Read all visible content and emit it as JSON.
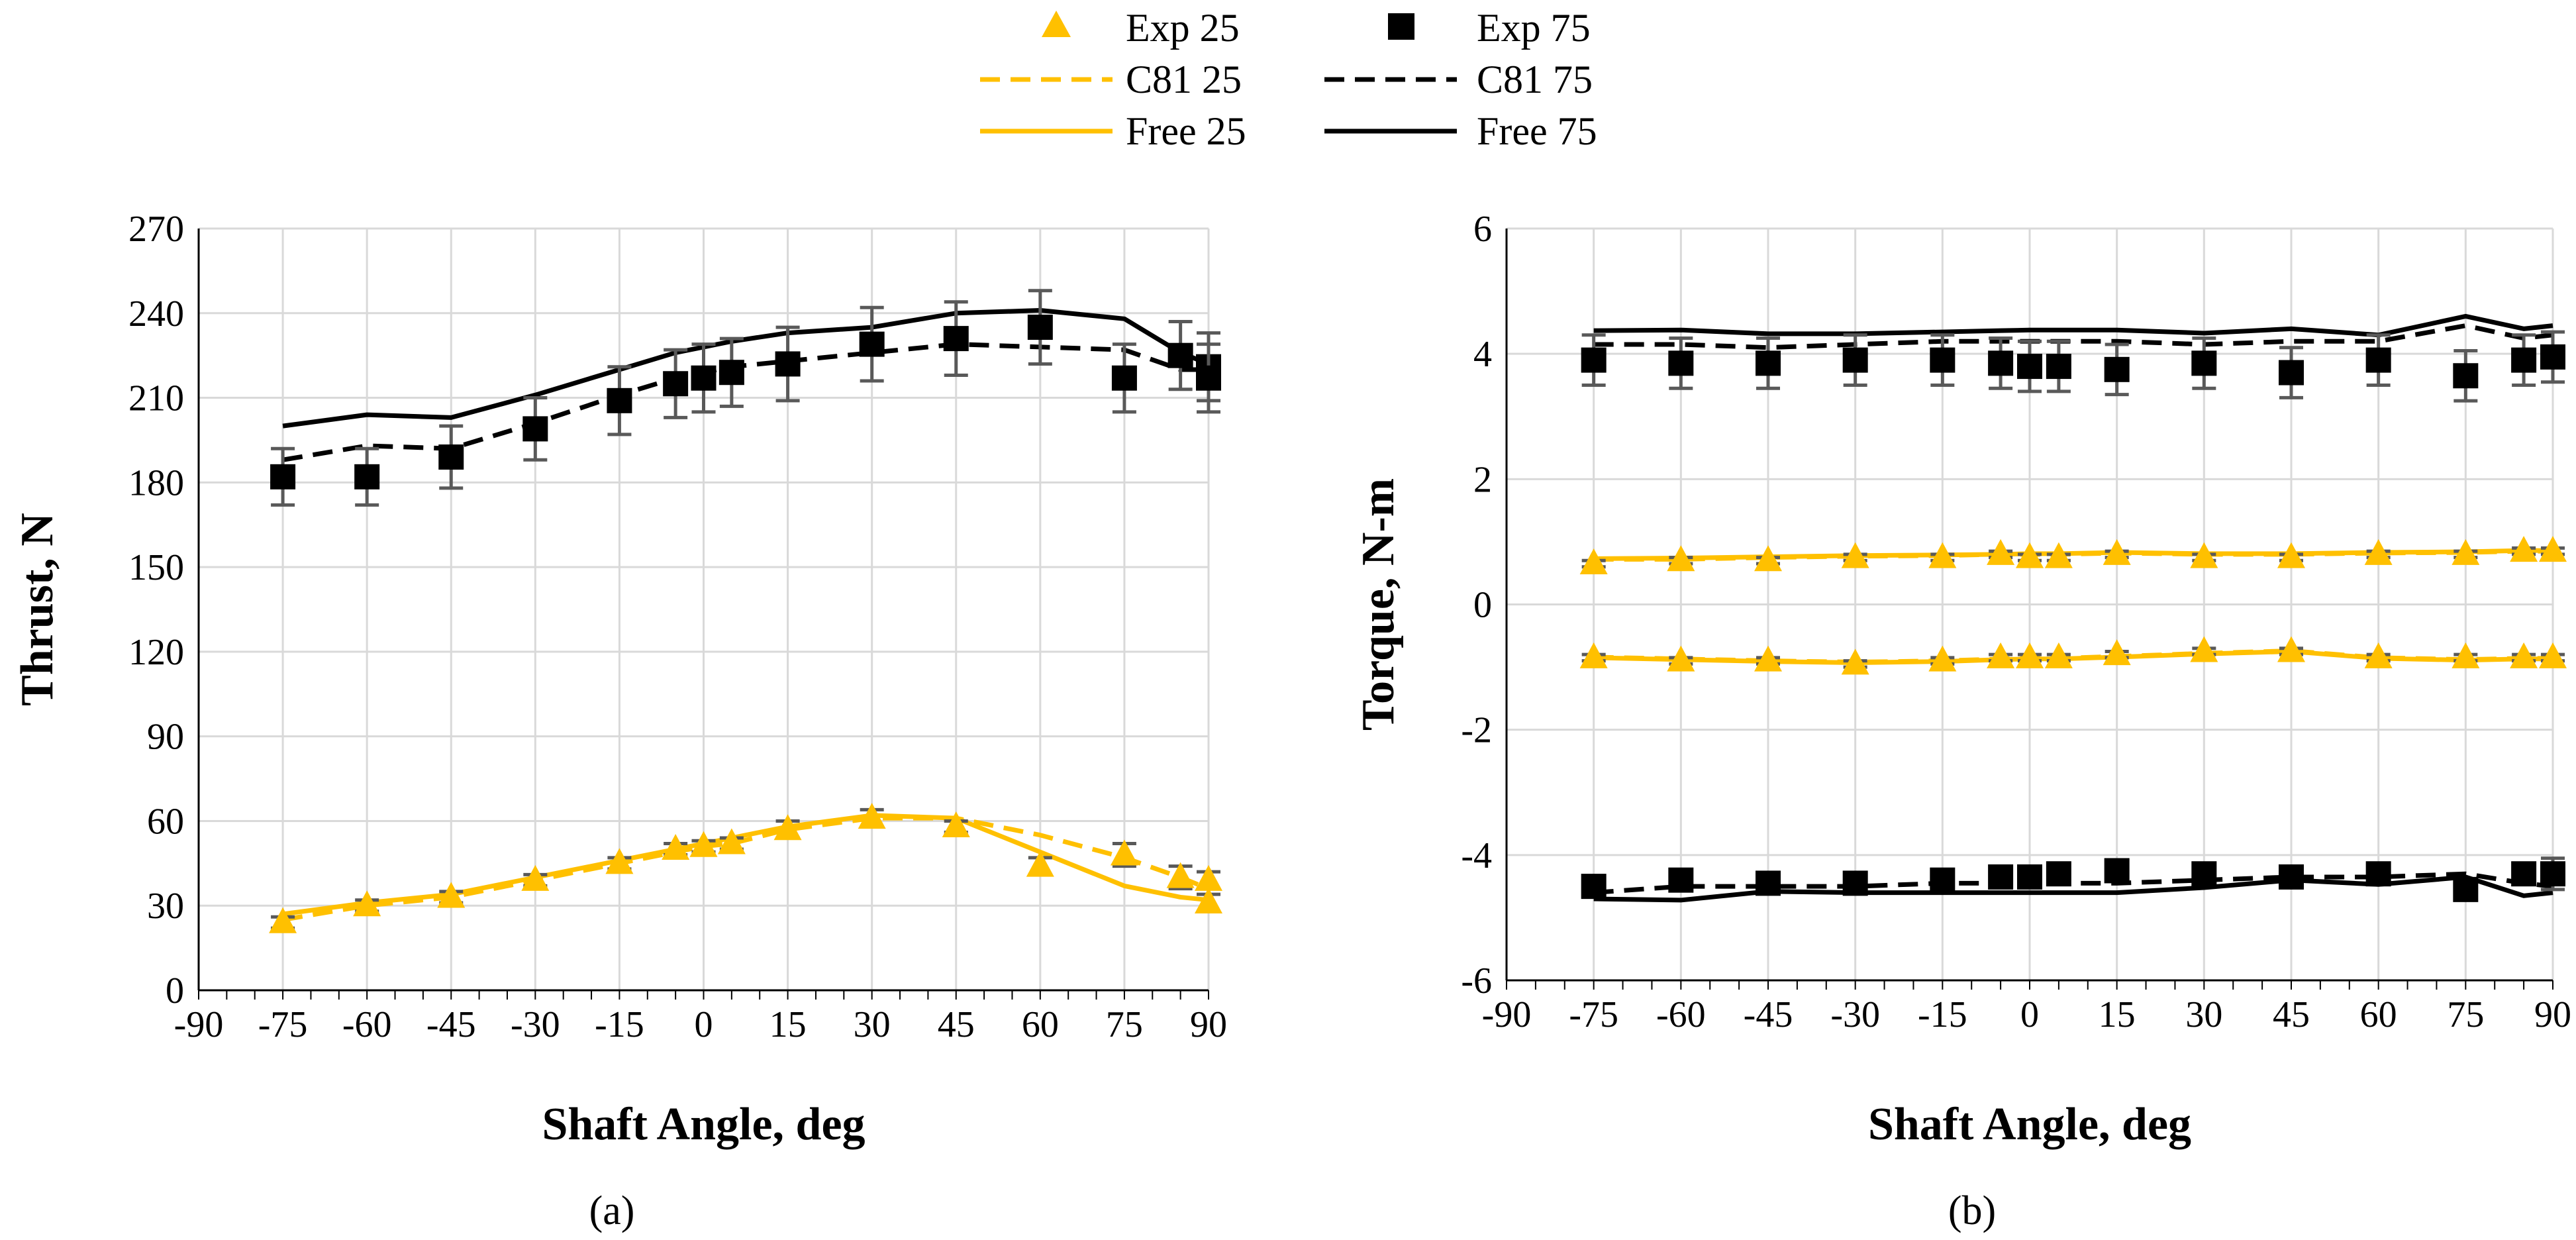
{
  "colors": {
    "series25": "#FFC000",
    "series75": "#000000",
    "grid": "#D9D9D9",
    "errorbar": "#595959",
    "axis": "#000000"
  },
  "legend": [
    {
      "label": "Exp 25",
      "style": "triangle",
      "color": "#FFC000"
    },
    {
      "label": "Exp 75",
      "style": "square",
      "color": "#000000"
    },
    {
      "label": "C81 25",
      "style": "dashed",
      "color": "#FFC000"
    },
    {
      "label": "C81 75",
      "style": "dashed",
      "color": "#000000"
    },
    {
      "label": "Free 25",
      "style": "solid",
      "color": "#FFC000"
    },
    {
      "label": "Free 75",
      "style": "solid",
      "color": "#000000"
    }
  ],
  "panel_labels": {
    "a": "(a)",
    "b": "(b)"
  },
  "chart_data": [
    {
      "id": "a",
      "type": "line",
      "xlabel": "Shaft Angle, deg",
      "ylabel": "Thrust, N",
      "xlim": [
        -90,
        90
      ],
      "ylim": [
        0,
        270
      ],
      "xticks": [
        -90,
        -75,
        -60,
        -45,
        -30,
        -15,
        0,
        15,
        30,
        45,
        60,
        75,
        90
      ],
      "yticks": [
        0,
        30,
        60,
        90,
        120,
        150,
        180,
        210,
        240,
        270
      ],
      "grid": true,
      "series": [
        {
          "name": "Exp 25",
          "kind": "marker",
          "marker": "triangle",
          "color": "#FFC000",
          "x": [
            -75,
            -60,
            -45,
            -30,
            -15,
            -5,
            0,
            5,
            15,
            30,
            45,
            60,
            75,
            85,
            90
          ],
          "y": [
            24,
            30,
            33,
            39,
            45,
            50,
            51,
            52,
            57,
            61,
            58,
            44,
            48,
            40,
            31
          ],
          "err": [
            2,
            2,
            2,
            2,
            2,
            2,
            2,
            2,
            3,
            3,
            2,
            3,
            4,
            4,
            3
          ]
        },
        {
          "name": "Exp 25 ",
          "kind": "marker",
          "marker": "triangle",
          "color": "#FFC000",
          "x": [
            90
          ],
          "y": [
            39
          ],
          "err": [
            3
          ]
        },
        {
          "name": "Exp 75",
          "kind": "marker",
          "marker": "square",
          "color": "#000000",
          "x": [
            -75,
            -60,
            -45,
            -30,
            -15,
            -5,
            0,
            5,
            15,
            30,
            45,
            60,
            75,
            85,
            90,
            90
          ],
          "y": [
            182,
            182,
            189,
            199,
            209,
            215,
            217,
            219,
            222,
            229,
            231,
            235,
            217,
            225,
            221,
            217
          ],
          "err": [
            10,
            10,
            11,
            11,
            12,
            12,
            12,
            12,
            13,
            13,
            13,
            13,
            12,
            12,
            12,
            12
          ]
        },
        {
          "name": "C81 25",
          "kind": "line",
          "dash": true,
          "color": "#FFC000",
          "x": [
            -75,
            -60,
            -45,
            -30,
            -15,
            -5,
            0,
            5,
            15,
            30,
            45,
            60,
            75,
            85,
            90
          ],
          "y": [
            25,
            30,
            33,
            39,
            45,
            49,
            51,
            52,
            57,
            61,
            61,
            55,
            47,
            40,
            36
          ]
        },
        {
          "name": "C81 75",
          "kind": "line",
          "dash": true,
          "color": "#000000",
          "x": [
            -75,
            -60,
            -45,
            -30,
            -15,
            -5,
            0,
            5,
            15,
            30,
            45,
            60,
            75,
            85,
            90
          ],
          "y": [
            188,
            193,
            192,
            201,
            211,
            217,
            219,
            221,
            223,
            226,
            229,
            228,
            227,
            220,
            220
          ]
        },
        {
          "name": "Free 25",
          "kind": "line",
          "dash": false,
          "color": "#FFC000",
          "x": [
            -75,
            -60,
            -45,
            -30,
            -15,
            -5,
            0,
            5,
            15,
            30,
            45,
            60,
            75,
            85,
            90
          ],
          "y": [
            27,
            31,
            34,
            40,
            46,
            50,
            52,
            54,
            58,
            62,
            61,
            49,
            37,
            33,
            32
          ]
        },
        {
          "name": "Free 75",
          "kind": "line",
          "dash": false,
          "color": "#000000",
          "x": [
            -75,
            -60,
            -45,
            -30,
            -15,
            -5,
            0,
            5,
            15,
            30,
            45,
            60,
            75,
            85,
            90
          ],
          "y": [
            200,
            204,
            203,
            211,
            220,
            226,
            228,
            230,
            233,
            235,
            240,
            241,
            238,
            226,
            222
          ]
        }
      ]
    },
    {
      "id": "b",
      "type": "line",
      "xlabel": "Shaft Angle, deg",
      "ylabel": "Torque, N-m",
      "xlim": [
        -90,
        90
      ],
      "ylim": [
        -6,
        6
      ],
      "xticks": [
        -90,
        -75,
        -60,
        -45,
        -30,
        -15,
        0,
        15,
        30,
        45,
        60,
        75,
        90
      ],
      "yticks": [
        -6,
        -4,
        -2,
        0,
        2,
        4,
        6
      ],
      "grid": true,
      "series": [
        {
          "name": "Exp 75 (upper)",
          "kind": "marker",
          "marker": "square",
          "color": "#000000",
          "x": [
            -75,
            -60,
            -45,
            -30,
            -15,
            -5,
            0,
            5,
            15,
            30,
            45,
            60,
            75,
            85,
            90
          ],
          "y": [
            3.9,
            3.85,
            3.85,
            3.9,
            3.9,
            3.85,
            3.8,
            3.8,
            3.75,
            3.85,
            3.7,
            3.9,
            3.65,
            3.9,
            3.95
          ],
          "err": [
            0.4,
            0.4,
            0.4,
            0.4,
            0.4,
            0.4,
            0.4,
            0.4,
            0.4,
            0.4,
            0.4,
            0.4,
            0.4,
            0.4,
            0.4
          ]
        },
        {
          "name": "Exp 25 (upper)",
          "kind": "marker",
          "marker": "triangle",
          "color": "#FFC000",
          "x": [
            -75,
            -60,
            -45,
            -30,
            -15,
            -5,
            0,
            5,
            15,
            30,
            45,
            60,
            75,
            85,
            90
          ],
          "y": [
            0.65,
            0.7,
            0.7,
            0.75,
            0.75,
            0.8,
            0.75,
            0.75,
            0.8,
            0.75,
            0.75,
            0.8,
            0.8,
            0.85,
            0.85
          ],
          "err": [
            0.05,
            0.05,
            0.05,
            0.05,
            0.05,
            0.05,
            0.05,
            0.05,
            0.05,
            0.05,
            0.05,
            0.05,
            0.05,
            0.05,
            0.05
          ]
        },
        {
          "name": "Exp 25 (lower)",
          "kind": "marker",
          "marker": "triangle",
          "color": "#FFC000",
          "x": [
            -75,
            -60,
            -45,
            -30,
            -15,
            -5,
            0,
            5,
            15,
            30,
            45,
            60,
            75,
            85,
            90
          ],
          "y": [
            -0.85,
            -0.9,
            -0.9,
            -0.95,
            -0.9,
            -0.85,
            -0.85,
            -0.85,
            -0.8,
            -0.75,
            -0.75,
            -0.85,
            -0.85,
            -0.85,
            -0.85
          ],
          "err": [
            0.05,
            0.05,
            0.05,
            0.05,
            0.05,
            0.05,
            0.05,
            0.05,
            0.05,
            0.05,
            0.05,
            0.05,
            0.05,
            0.05,
            0.05
          ]
        },
        {
          "name": "Exp 75 (lower)",
          "kind": "marker",
          "marker": "square",
          "color": "#000000",
          "x": [
            -75,
            -60,
            -45,
            -30,
            -15,
            -5,
            0,
            5,
            15,
            30,
            45,
            60,
            75,
            85,
            90
          ],
          "y": [
            -4.5,
            -4.4,
            -4.45,
            -4.45,
            -4.4,
            -4.35,
            -4.35,
            -4.3,
            -4.25,
            -4.3,
            -4.35,
            -4.3,
            -4.55,
            -4.3,
            -4.3
          ],
          "err": [
            0.15,
            0.15,
            0.15,
            0.15,
            0.15,
            0.15,
            0.15,
            0.15,
            0.15,
            0.15,
            0.15,
            0.15,
            0.15,
            0.15,
            0.25
          ]
        },
        {
          "name": "C81 75 (upper)",
          "kind": "line",
          "dash": true,
          "color": "#000000",
          "x": [
            -75,
            -60,
            -45,
            -30,
            -15,
            -5,
            0,
            5,
            15,
            30,
            45,
            60,
            75,
            85,
            90
          ],
          "y": [
            4.15,
            4.15,
            4.1,
            4.15,
            4.2,
            4.2,
            4.2,
            4.2,
            4.2,
            4.15,
            4.2,
            4.2,
            4.45,
            4.25,
            4.3
          ]
        },
        {
          "name": "Free 75 (upper)",
          "kind": "line",
          "dash": false,
          "color": "#000000",
          "x": [
            -75,
            -60,
            -45,
            -30,
            -15,
            -5,
            0,
            5,
            15,
            30,
            45,
            60,
            75,
            85,
            90
          ],
          "y": [
            4.37,
            4.38,
            4.32,
            4.32,
            4.35,
            4.37,
            4.38,
            4.38,
            4.38,
            4.33,
            4.4,
            4.3,
            4.6,
            4.4,
            4.45
          ]
        },
        {
          "name": "C81 25 (upper)",
          "kind": "line",
          "dash": true,
          "color": "#FFC000",
          "x": [
            -75,
            -60,
            -45,
            -30,
            -15,
            -5,
            0,
            5,
            15,
            30,
            45,
            60,
            75,
            85,
            90
          ],
          "y": [
            0.72,
            0.72,
            0.75,
            0.77,
            0.78,
            0.8,
            0.8,
            0.8,
            0.82,
            0.8,
            0.8,
            0.82,
            0.83,
            0.85,
            0.85
          ]
        },
        {
          "name": "Free 25 (upper)",
          "kind": "line",
          "dash": false,
          "color": "#FFC000",
          "x": [
            -75,
            -60,
            -45,
            -30,
            -15,
            -5,
            0,
            5,
            15,
            30,
            45,
            60,
            75,
            85,
            90
          ],
          "y": [
            0.73,
            0.74,
            0.76,
            0.78,
            0.79,
            0.8,
            0.81,
            0.81,
            0.83,
            0.81,
            0.81,
            0.83,
            0.84,
            0.86,
            0.86
          ]
        },
        {
          "name": "C81 25 (lower)",
          "kind": "line",
          "dash": true,
          "color": "#FFC000",
          "x": [
            -75,
            -60,
            -45,
            -30,
            -15,
            -5,
            0,
            5,
            15,
            30,
            45,
            60,
            75,
            85,
            90
          ],
          "y": [
            -0.84,
            -0.87,
            -0.9,
            -0.92,
            -0.9,
            -0.87,
            -0.86,
            -0.86,
            -0.83,
            -0.78,
            -0.74,
            -0.85,
            -0.88,
            -0.86,
            -0.86
          ]
        },
        {
          "name": "Free 25 (lower)",
          "kind": "line",
          "dash": false,
          "color": "#FFC000",
          "x": [
            -75,
            -60,
            -45,
            -30,
            -15,
            -5,
            0,
            5,
            15,
            30,
            45,
            60,
            75,
            85,
            90
          ],
          "y": [
            -0.85,
            -0.88,
            -0.91,
            -0.93,
            -0.91,
            -0.88,
            -0.87,
            -0.87,
            -0.84,
            -0.79,
            -0.75,
            -0.86,
            -0.89,
            -0.87,
            -0.87
          ]
        },
        {
          "name": "C81 75 (lower)",
          "kind": "line",
          "dash": true,
          "color": "#000000",
          "x": [
            -75,
            -60,
            -45,
            -30,
            -15,
            -5,
            0,
            5,
            15,
            30,
            45,
            60,
            75,
            85,
            90
          ],
          "y": [
            -4.6,
            -4.5,
            -4.5,
            -4.5,
            -4.45,
            -4.45,
            -4.45,
            -4.45,
            -4.45,
            -4.4,
            -4.35,
            -4.35,
            -4.3,
            -4.45,
            -4.5
          ]
        },
        {
          "name": "Free 75 (lower)",
          "kind": "line",
          "dash": false,
          "color": "#000000",
          "x": [
            -75,
            -60,
            -45,
            -30,
            -15,
            -5,
            0,
            5,
            15,
            30,
            45,
            60,
            75,
            85,
            90
          ],
          "y": [
            -4.7,
            -4.72,
            -4.58,
            -4.6,
            -4.6,
            -4.6,
            -4.6,
            -4.6,
            -4.6,
            -4.52,
            -4.4,
            -4.47,
            -4.35,
            -4.65,
            -4.6
          ]
        }
      ]
    }
  ]
}
